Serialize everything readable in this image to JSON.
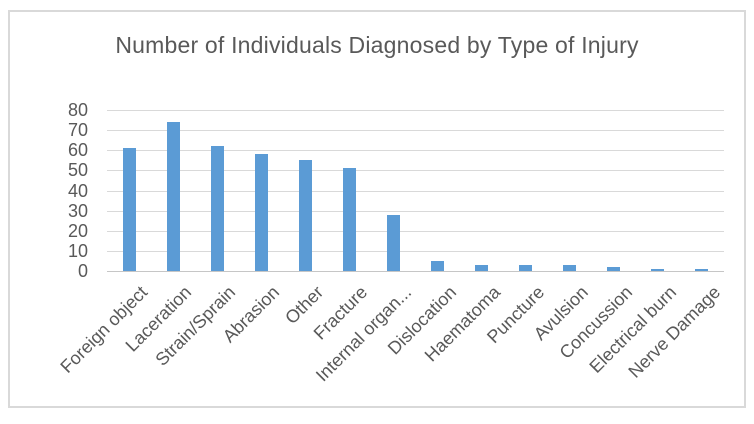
{
  "chart_data": {
    "type": "bar",
    "title": "Number of Individuals Diagnosed by Type of Injury",
    "categories": [
      "Foreign object",
      "Laceration",
      "Strain/Sprain",
      "Abrasion",
      "Other",
      "Fracture",
      "Internal organ...",
      "Dislocation",
      "Haematoma",
      "Puncture",
      "Avulsion",
      "Concussion",
      "Electrical burn",
      "Nerve Damage"
    ],
    "values": [
      61,
      74,
      62,
      58,
      55,
      51,
      28,
      5,
      3,
      3,
      3,
      2,
      1,
      1
    ],
    "xlabel": "",
    "ylabel": "",
    "ylim": [
      0,
      80
    ],
    "ytick_step": 10,
    "yticks": [
      0,
      10,
      20,
      30,
      40,
      50,
      60,
      70,
      80
    ],
    "grid": true,
    "legend": false,
    "colors": {
      "bar": "#5B9BD5",
      "gridline": "#D9D9D9",
      "axis_line": "#C6C6C6",
      "text": "#595959",
      "frame_border": "#D9D9D9"
    }
  }
}
